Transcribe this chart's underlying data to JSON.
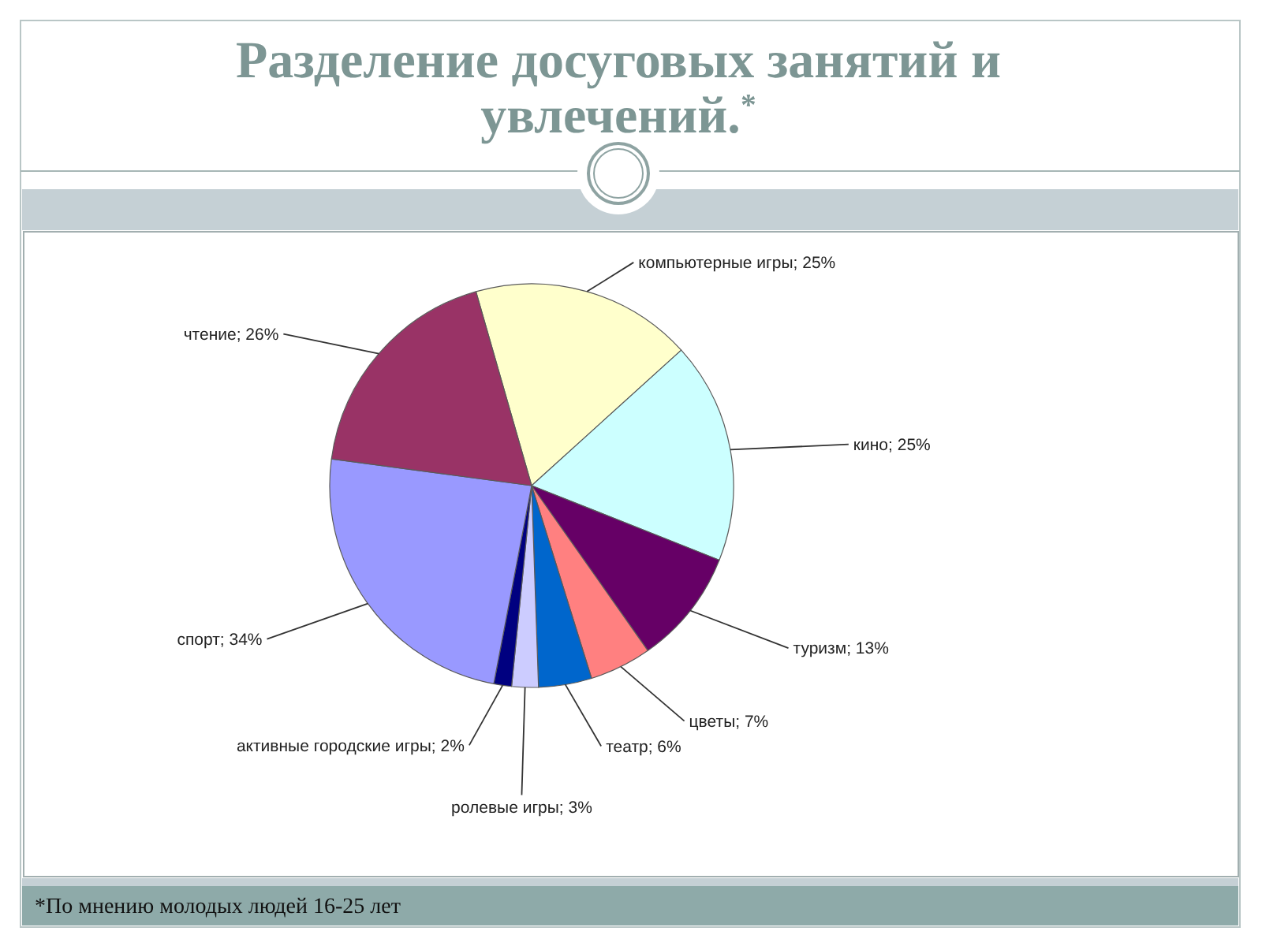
{
  "chart_data": {
    "type": "pie",
    "title": "Разделение досуговых занятий и увлечений.$^{*}$",
    "categories": [
      "компьютерные игры",
      "кино",
      "туризм",
      "цветы",
      "театр",
      "ролевые игры",
      "активные городские игры",
      "спорт",
      "чтение"
    ],
    "values": [
      25,
      25,
      13,
      7,
      6,
      3,
      2,
      34,
      26
    ],
    "colors": [
      "#ffffcc",
      "#ccffff",
      "#660066",
      "#ff8080",
      "#0066cc",
      "#ccccff",
      "#000080",
      "#9999ff",
      "#993366"
    ],
    "value_labels": [
      "; 25%",
      "; 25%",
      "; 13%",
      "; 7%",
      "; 6%",
      "; 3%",
      "; 2%",
      "; 34%",
      "; 26%"
    ],
    "annotations": [
      "*По мнению молодых людей 16-25 лет"
    ]
  }
}
